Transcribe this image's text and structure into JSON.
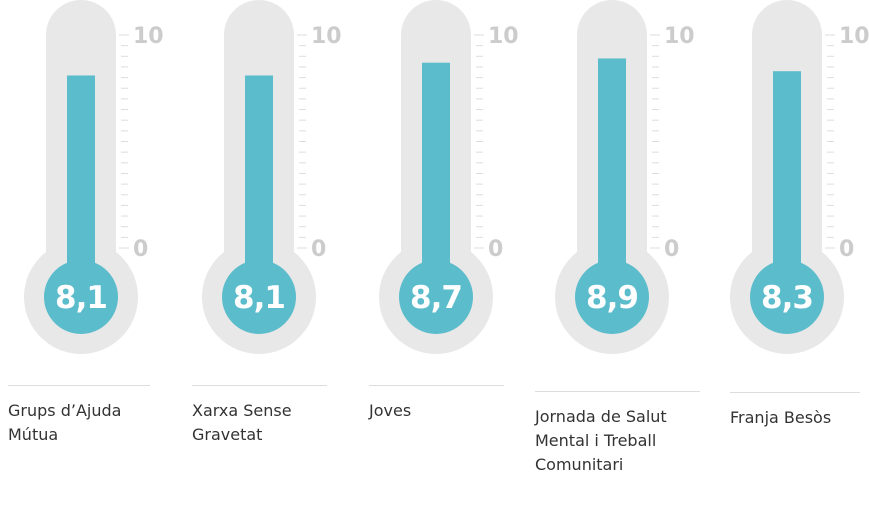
{
  "chart_data": {
    "type": "thermometer",
    "categories": [
      "Grups d’Ajuda Mútua",
      "Xarxa Sense Gravetat",
      "Joves",
      "Jornada de Salut Mental i Treball Comunitari",
      "Franja Besòs"
    ],
    "values": [
      8.1,
      8.1,
      8.7,
      8.9,
      8.3
    ],
    "value_labels": [
      "8,1",
      "8,1",
      "8,7",
      "8,9",
      "8,3"
    ],
    "color": "#5bbccc",
    "ylim": [
      0,
      10
    ],
    "yticks": [
      0,
      10
    ]
  }
}
